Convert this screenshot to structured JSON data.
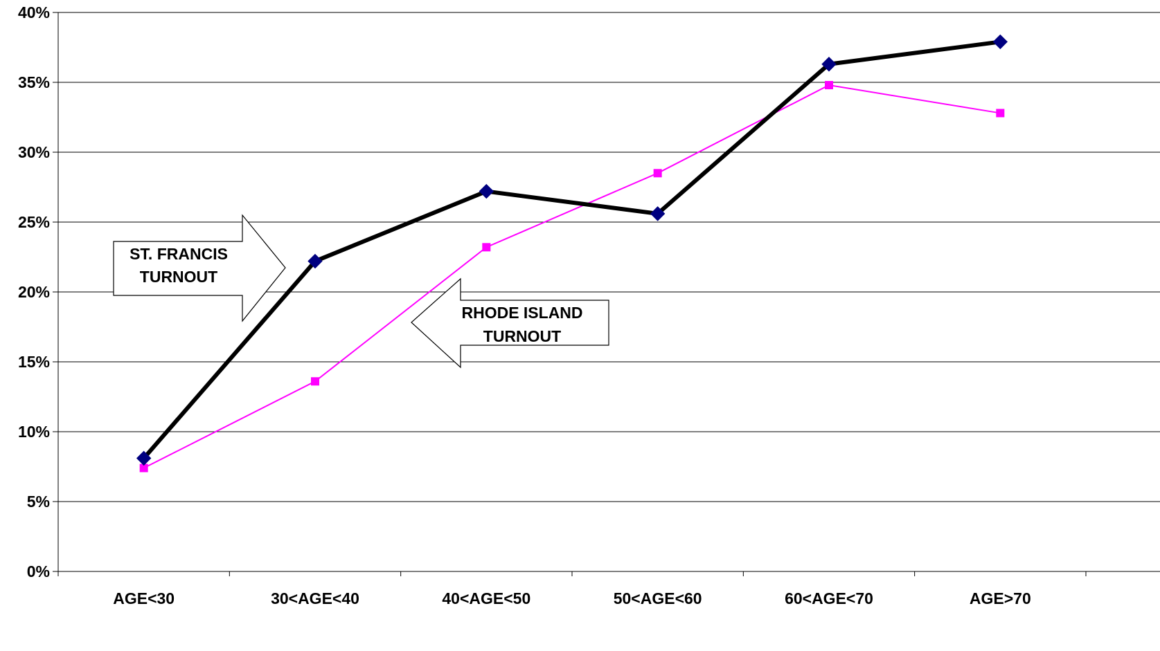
{
  "chart_data": {
    "type": "line",
    "categories": [
      "AGE<30",
      "30<AGE<40",
      "40<AGE<50",
      "50<AGE<60",
      "60<AGE<70",
      "AGE>70"
    ],
    "series": [
      {
        "values": [
          8.1,
          22.2,
          27.2,
          25.6,
          36.3,
          37.9
        ],
        "color": "#000000",
        "marker": "diamond",
        "marker_color": "#000080"
      },
      {
        "values": [
          7.4,
          13.6,
          23.2,
          28.5,
          34.8,
          32.8
        ],
        "color": "#ff00ff",
        "marker": "square",
        "marker_color": "#ff00ff"
      }
    ],
    "ylim": [
      0,
      40
    ],
    "yticks": [
      0,
      5,
      10,
      15,
      20,
      25,
      30,
      35,
      40
    ],
    "ytick_labels": [
      "0%",
      "5%",
      "10%",
      "15%",
      "20%",
      "25%",
      "30%",
      "35%",
      "40%"
    ],
    "grid": true,
    "annotations": [
      {
        "lines": [
          "ST. FRANCIS",
          "TURNOUT"
        ],
        "direction": "right"
      },
      {
        "lines": [
          "RHODE ISLAND",
          "TURNOUT"
        ],
        "direction": "left"
      }
    ]
  }
}
